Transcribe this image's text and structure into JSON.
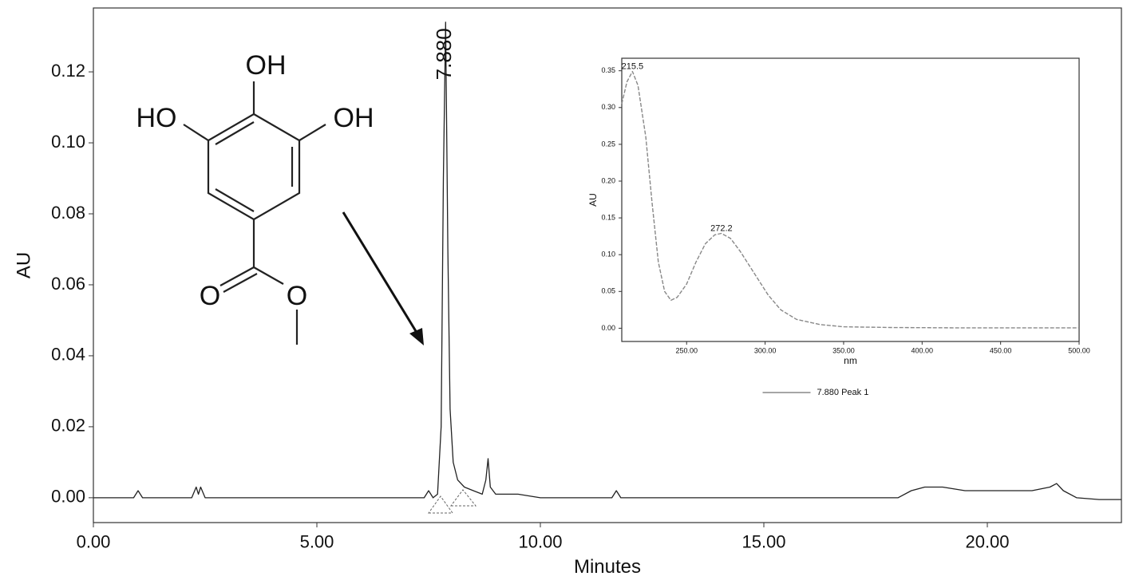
{
  "chart_data": [
    {
      "type": "line",
      "x_label": "Minutes",
      "y_label": "AU",
      "xlim": [
        0,
        23
      ],
      "ylim": [
        -0.007,
        0.138
      ],
      "xticks": [
        {
          "value": 0,
          "label": "0.00"
        },
        {
          "value": 5,
          "label": "5.00"
        },
        {
          "value": 10,
          "label": "10.00"
        },
        {
          "value": 15,
          "label": "15.00"
        },
        {
          "value": 20,
          "label": "20.00"
        }
      ],
      "yticks": [
        {
          "value": 0,
          "label": "0.00"
        },
        {
          "value": 0.02,
          "label": "0.02"
        },
        {
          "value": 0.04,
          "label": "0.04"
        },
        {
          "value": 0.06,
          "label": "0.06"
        },
        {
          "value": 0.08,
          "label": "0.08"
        },
        {
          "value": 0.1,
          "label": "0.10"
        },
        {
          "value": 0.12,
          "label": "0.12"
        }
      ],
      "series": [
        {
          "color": "#222222",
          "x": [
            0,
            0.9,
            1.0,
            1.1,
            2.2,
            2.3,
            2.35,
            2.4,
            2.5,
            3,
            5,
            7.0,
            7.4,
            7.5,
            7.6,
            7.7,
            7.78,
            7.83,
            7.88,
            7.93,
            7.98,
            8.05,
            8.15,
            8.3,
            8.5,
            8.7,
            8.78,
            8.83,
            8.88,
            9.0,
            9.5,
            10,
            11.6,
            11.7,
            11.8,
            13,
            15,
            17,
            18,
            18.3,
            18.6,
            19,
            19.5,
            20,
            20.5,
            21,
            21.4,
            21.55,
            21.7,
            22,
            22.5,
            23
          ],
          "values": [
            0,
            0,
            0.002,
            0,
            0,
            0.003,
            0.001,
            0.003,
            0,
            0,
            0,
            0,
            0,
            0.002,
            0,
            0.001,
            0.02,
            0.09,
            0.134,
            0.07,
            0.025,
            0.01,
            0.005,
            0.003,
            0.002,
            0.001,
            0.005,
            0.011,
            0.003,
            0.001,
            0.001,
            0,
            0,
            0.002,
            0,
            0,
            0,
            0,
            0,
            0.002,
            0.003,
            0.003,
            0.002,
            0.002,
            0.002,
            0.002,
            0.003,
            0.004,
            0.002,
            0,
            -0.0005,
            -0.0005
          ]
        }
      ],
      "annotations": [
        {
          "label": "7.880",
          "x": 7.88,
          "y": 0.134
        }
      ]
    },
    {
      "type": "line",
      "x_label": "nm",
      "y_label": "AU",
      "xlim": [
        208.7,
        500
      ],
      "ylim": [
        -0.018,
        0.367
      ],
      "xticks": [
        {
          "value": 250,
          "label": "250.00"
        },
        {
          "value": 300,
          "label": "300.00"
        },
        {
          "value": 350,
          "label": "350.00"
        },
        {
          "value": 400,
          "label": "400.00"
        },
        {
          "value": 450,
          "label": "450.00"
        },
        {
          "value": 500,
          "label": "500.00"
        }
      ],
      "yticks": [
        {
          "value": 0,
          "label": "0.00"
        },
        {
          "value": 0.05,
          "label": "0.05"
        },
        {
          "value": 0.1,
          "label": "0.10"
        },
        {
          "value": 0.15,
          "label": "0.15"
        },
        {
          "value": 0.2,
          "label": "0.20"
        },
        {
          "value": 0.25,
          "label": "0.25"
        },
        {
          "value": 0.3,
          "label": "0.30"
        },
        {
          "value": 0.35,
          "label": "0.35"
        }
      ],
      "series": [
        {
          "name": "7.880 Peak 1",
          "color": "#888888",
          "x": [
            208.7,
            212,
            215.5,
            219,
            224,
            228,
            232,
            236,
            240,
            244,
            250,
            256,
            262,
            268,
            272.2,
            278,
            284,
            290,
            296,
            302,
            310,
            320,
            335,
            350,
            380,
            420,
            460,
            500
          ],
          "values": [
            0.305,
            0.335,
            0.349,
            0.33,
            0.26,
            0.17,
            0.09,
            0.05,
            0.038,
            0.042,
            0.06,
            0.09,
            0.115,
            0.127,
            0.129,
            0.122,
            0.105,
            0.085,
            0.065,
            0.045,
            0.025,
            0.012,
            0.005,
            0.002,
            0.001,
            0.0005,
            0.0005,
            0.0005
          ]
        }
      ],
      "annotations": [
        {
          "label": "215.5",
          "x": 215.5,
          "y": 0.349
        },
        {
          "label": "272.2",
          "x": 272.2,
          "y": 0.129
        }
      ]
    }
  ],
  "structure": {
    "labels": [
      "OH",
      "HO",
      "OH",
      "O",
      "O"
    ]
  }
}
